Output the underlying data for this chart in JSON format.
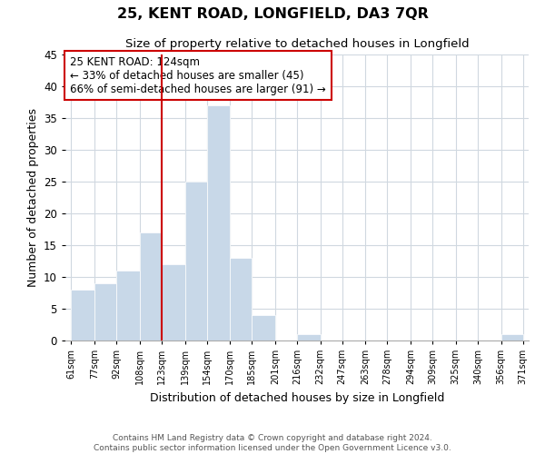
{
  "title": "25, KENT ROAD, LONGFIELD, DA3 7QR",
  "subtitle": "Size of property relative to detached houses in Longfield",
  "xlabel": "Distribution of detached houses by size in Longfield",
  "ylabel": "Number of detached properties",
  "bin_labels": [
    "61sqm",
    "77sqm",
    "92sqm",
    "108sqm",
    "123sqm",
    "139sqm",
    "154sqm",
    "170sqm",
    "185sqm",
    "201sqm",
    "216sqm",
    "232sqm",
    "247sqm",
    "263sqm",
    "278sqm",
    "294sqm",
    "309sqm",
    "325sqm",
    "340sqm",
    "356sqm",
    "371sqm"
  ],
  "bin_edges": [
    61,
    77,
    92,
    108,
    123,
    139,
    154,
    170,
    185,
    201,
    216,
    232,
    247,
    263,
    278,
    294,
    309,
    325,
    340,
    356,
    371
  ],
  "bar_heights": [
    8,
    9,
    11,
    17,
    12,
    25,
    37,
    13,
    4,
    0,
    1,
    0,
    0,
    0,
    0,
    0,
    0,
    0,
    0,
    1
  ],
  "bar_color": "#c8d8e8",
  "bar_edge_color": "#ffffff",
  "grid_color": "#d0d8e0",
  "property_line_x": 123,
  "property_line_color": "#cc0000",
  "annotation_title": "25 KENT ROAD: 124sqm",
  "annotation_line1": "← 33% of detached houses are smaller (45)",
  "annotation_line2": "66% of semi-detached houses are larger (91) →",
  "annotation_box_color": "#ffffff",
  "annotation_box_edge": "#cc0000",
  "ylim": [
    0,
    45
  ],
  "yticks": [
    0,
    5,
    10,
    15,
    20,
    25,
    30,
    35,
    40,
    45
  ],
  "footnote1": "Contains HM Land Registry data © Crown copyright and database right 2024.",
  "footnote2": "Contains public sector information licensed under the Open Government Licence v3.0."
}
